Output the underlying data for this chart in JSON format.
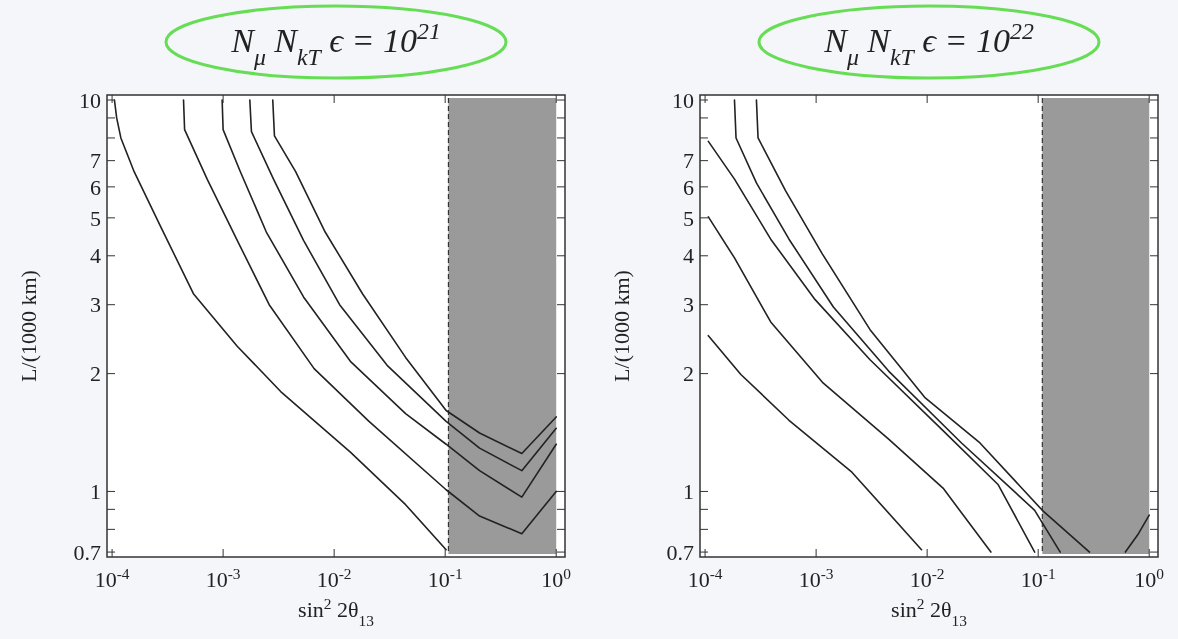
{
  "chart_data": [
    {
      "type": "line",
      "title": "N$_{μ}$  N$_{kT}$ ϵ = 10$^{21}$",
      "xlabel": "sin$^{2}$ 2θ$_{13}$",
      "ylabel": "L/(1000 km)",
      "log": "xy",
      "xlim": [
        9e-05,
        1.2
      ],
      "ylim": [
        0.68,
        10.3
      ],
      "xticks": [
        {
          "value": 0.0001,
          "label": "10$^{-4}$"
        },
        {
          "value": 0.001,
          "label": "10$^{-3}$"
        },
        {
          "value": 0.01,
          "label": "10$^{-2}$"
        },
        {
          "value": 0.1,
          "label": "10$^{-1}$"
        },
        {
          "value": 1,
          "label": "10$^{0}$"
        }
      ],
      "yticks": [
        0.7,
        {
          "value": 0.8,
          "label": null
        },
        {
          "value": 0.9,
          "label": null
        },
        1,
        2,
        3,
        4,
        5,
        6,
        7,
        {
          "value": 8,
          "label": null
        },
        {
          "value": 9,
          "label": null
        },
        10
      ],
      "bands": [
        {
          "axis": "x",
          "from": 0.107,
          "to": 1,
          "color": "#9a9a9a"
        }
      ],
      "ref_lines": [
        {
          "axis": "x",
          "value": 0.107,
          "color": "#333333",
          "line_style": "dashed"
        }
      ],
      "series": [
        {
          "color": "#222222",
          "x": [
            0.000105,
            0.00011,
            0.00012,
            0.000158,
            0.000269,
            0.00054,
            0.00134,
            0.0033,
            0.014,
            0.044,
            0.102
          ],
          "values": [
            10,
            9,
            8,
            6.56,
            4.8,
            3.2,
            2.35,
            1.8,
            1.26,
            0.925,
            0.71
          ]
        },
        {
          "color": "#222222",
          "x": [
            0.00044,
            0.00045,
            0.00072,
            0.00134,
            0.0026,
            0.0066,
            0.0206,
            0.102,
            0.204,
            0.49,
            1
          ],
          "values": [
            10,
            8.4,
            6.27,
            4.38,
            3,
            2.06,
            1.51,
            1.01,
            0.865,
            0.78,
            1
          ]
        },
        {
          "color": "#222222",
          "x": [
            0.00098,
            0.001,
            0.00143,
            0.00245,
            0.0053,
            0.014,
            0.044,
            0.102,
            0.204,
            0.49,
            1
          ],
          "values": [
            10,
            8.4,
            6.56,
            4.6,
            3.14,
            2.15,
            1.58,
            1.32,
            1.13,
            0.967,
            1.32
          ]
        },
        {
          "color": "#222222",
          "x": [
            0.00174,
            0.0018,
            0.00285,
            0.0053,
            0.0112,
            0.03,
            0.102,
            0.204,
            0.49,
            1
          ],
          "values": [
            10,
            8.3,
            6.27,
            4.38,
            3,
            2.1,
            1.51,
            1.29,
            1.13,
            1.45
          ]
        },
        {
          "color": "#222222",
          "x": [
            0.0028,
            0.0029,
            0.0045,
            0.0083,
            0.018,
            0.044,
            0.102,
            0.204,
            0.49,
            1
          ],
          "values": [
            10,
            8.1,
            6.56,
            4.6,
            3.2,
            2.2,
            1.61,
            1.41,
            1.25,
            1.55
          ]
        }
      ]
    },
    {
      "type": "line",
      "title": "N$_{μ}$  N$_{kT}$ ϵ = 10$^{22}$",
      "xlabel": "sin$^{2}$ 2θ$_{13}$",
      "ylabel": "L/(1000 km)",
      "log": "xy",
      "xlim": [
        9e-05,
        1.2
      ],
      "ylim": [
        0.68,
        10.3
      ],
      "xticks": [
        {
          "value": 0.0001,
          "label": "10$^{-4}$"
        },
        {
          "value": 0.001,
          "label": "10$^{-3}$"
        },
        {
          "value": 0.01,
          "label": "10$^{-2}$"
        },
        {
          "value": 0.1,
          "label": "10$^{-1}$"
        },
        {
          "value": 1,
          "label": "10$^{0}$"
        }
      ],
      "yticks": [
        0.7,
        {
          "value": 0.8,
          "label": null
        },
        {
          "value": 0.9,
          "label": null
        },
        1,
        2,
        3,
        4,
        5,
        6,
        7,
        {
          "value": 8,
          "label": null
        },
        {
          "value": 9,
          "label": null
        },
        10
      ],
      "bands": [
        {
          "axis": "x",
          "from": 0.109,
          "to": 1,
          "color": "#9a9a9a"
        }
      ],
      "ref_lines": [
        {
          "axis": "x",
          "value": 0.109,
          "color": "#333333",
          "line_style": "dashed"
        }
      ],
      "series": [
        {
          "color": "#222222",
          "x": [
            0.000107,
            0.00021,
            0.00057,
            0.0021,
            0.0089
          ],
          "values": [
            2.5,
            1.99,
            1.52,
            1.12,
            0.71
          ]
        },
        {
          "color": "#222222",
          "x": [
            0.000107,
            0.000184,
            0.00039,
            0.00114,
            0.0045,
            0.0139,
            0.0375
          ],
          "values": [
            5.03,
            3.95,
            2.71,
            1.9,
            1.36,
            1.02,
            0.7
          ]
        },
        {
          "color": "#222222",
          "x": [
            0.000107,
            0.000184,
            0.00039,
            0.00098,
            0.00306,
            0.0139,
            0.0437,
            0.093
          ],
          "values": [
            7.84,
            6.28,
            4.41,
            3.09,
            2.17,
            1.43,
            1.04,
            0.7
          ]
        },
        {
          "color": "#222222",
          "x": [
            0.000184,
            0.00019,
            0.00029,
            0.00057,
            0.00143,
            0.0045,
            0.0204,
            0.093,
            0.158
          ],
          "values": [
            10,
            8,
            6.14,
            4.41,
            2.96,
            2.03,
            1.33,
            0.895,
            0.7
          ]
        },
        {
          "color": "#222222",
          "x": [
            0.00029,
            0.0003,
            0.00053,
            0.00114,
            0.00306,
            0.0095,
            0.0299,
            0.109,
            0.29
          ],
          "values": [
            10,
            8,
            5.87,
            4.04,
            2.59,
            1.74,
            1.33,
            0.895,
            0.7
          ]
        },
        {
          "color": "#222222",
          "x": [
            0.61,
            0.8,
            1
          ],
          "values": [
            0.7,
            0.78,
            0.87
          ]
        }
      ]
    }
  ]
}
